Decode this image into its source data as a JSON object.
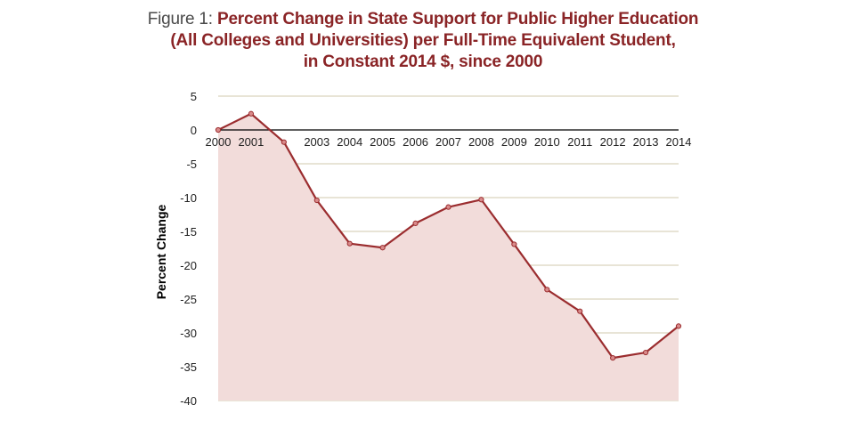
{
  "title": {
    "prefix": "Figure 1: ",
    "lines": [
      "Percent Change in State Support for Public Higher Education",
      "(All Colleges and Universities) per Full-Time Equivalent Student,",
      "in Constant 2014 $, since 2000"
    ]
  },
  "chart_data": {
    "type": "area",
    "title": "Percent Change in State Support for Public Higher Education (All Colleges and Universities) per Full-Time Equivalent Student, in Constant 2014 $, since 2000",
    "xlabel": "",
    "ylabel": "Percent Change",
    "x": [
      2000,
      2001,
      2002,
      2003,
      2004,
      2005,
      2006,
      2007,
      2008,
      2009,
      2010,
      2011,
      2012,
      2013,
      2014
    ],
    "x_tick_labels": [
      "2000",
      "2001",
      "",
      "2003",
      "2004",
      "2005",
      "2006",
      "2007",
      "2008",
      "2009",
      "2010",
      "2011",
      "2012",
      "2013",
      "2014"
    ],
    "values": [
      0,
      2.4,
      -1.8,
      -10.4,
      -16.8,
      -17.4,
      -13.8,
      -11.4,
      -10.3,
      -16.9,
      -23.6,
      -26.8,
      -33.7,
      -32.9,
      -29.0
    ],
    "ylim": [
      -40,
      5
    ],
    "yticks": [
      5,
      0,
      -5,
      -10,
      -15,
      -20,
      -25,
      -30,
      -35,
      -40
    ],
    "grid": true,
    "legend": "none",
    "colors": {
      "line": "#9b2d2f",
      "marker_fill": "#d98a8a",
      "area_fill": "#f2dcda",
      "grid": "#d2c9ad",
      "zero_line": "#000000"
    }
  }
}
